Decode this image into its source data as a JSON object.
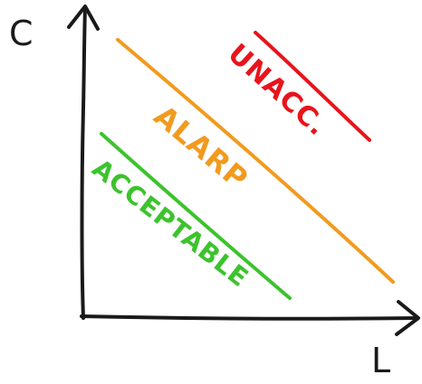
{
  "axes": {
    "y_label": "C",
    "x_label": "L"
  },
  "zones": [
    {
      "key": "unacceptable",
      "label": "UNACC.",
      "color": "#e8141c"
    },
    {
      "key": "alarp",
      "label": "ALARP",
      "color": "#f29a1e"
    },
    {
      "key": "acceptable",
      "label": "ACCEPTABLE",
      "color": "#3cc32d"
    }
  ],
  "colors": {
    "axis": "#1a1a1a",
    "background": "#ffffff"
  }
}
